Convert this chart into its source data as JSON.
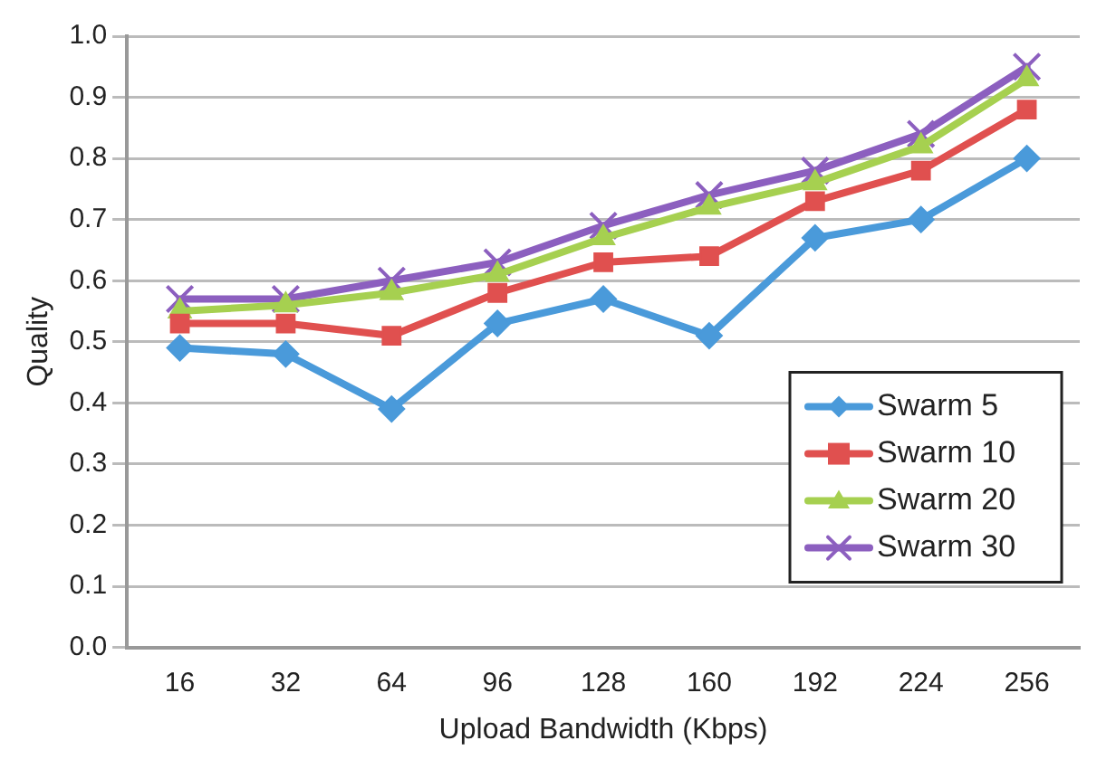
{
  "chart_data": {
    "type": "line",
    "xlabel": "Upload Bandwidth (Kbps)",
    "ylabel": "Quality",
    "categories": [
      "16",
      "32",
      "64",
      "96",
      "128",
      "160",
      "192",
      "224",
      "256"
    ],
    "series": [
      {
        "name": "Swarm 5",
        "color": "#4a9ada",
        "marker": "diamond",
        "values": [
          0.49,
          0.48,
          0.39,
          0.53,
          0.57,
          0.51,
          0.67,
          0.7,
          0.8
        ]
      },
      {
        "name": "Swarm 10",
        "color": "#e0504f",
        "marker": "square",
        "values": [
          0.53,
          0.53,
          0.51,
          0.58,
          0.63,
          0.64,
          0.73,
          0.78,
          0.88
        ]
      },
      {
        "name": "Swarm 20",
        "color": "#a6d050",
        "marker": "triangle",
        "values": [
          0.55,
          0.56,
          0.58,
          0.61,
          0.67,
          0.72,
          0.76,
          0.82,
          0.93
        ]
      },
      {
        "name": "Swarm 30",
        "color": "#8c5fbf",
        "marker": "cross",
        "values": [
          0.57,
          0.57,
          0.6,
          0.63,
          0.69,
          0.74,
          0.78,
          0.84,
          0.95
        ]
      }
    ],
    "ylim": [
      0,
      1
    ],
    "yticks": [
      {
        "value": 0,
        "label": "0.0"
      },
      0.1,
      0.2,
      0.3,
      0.4,
      0.5,
      0.6,
      0.7,
      0.8,
      0.9,
      {
        "value": 1,
        "label": "1.0"
      }
    ],
    "grid": "y",
    "legend": "right",
    "line_style": "solid"
  }
}
